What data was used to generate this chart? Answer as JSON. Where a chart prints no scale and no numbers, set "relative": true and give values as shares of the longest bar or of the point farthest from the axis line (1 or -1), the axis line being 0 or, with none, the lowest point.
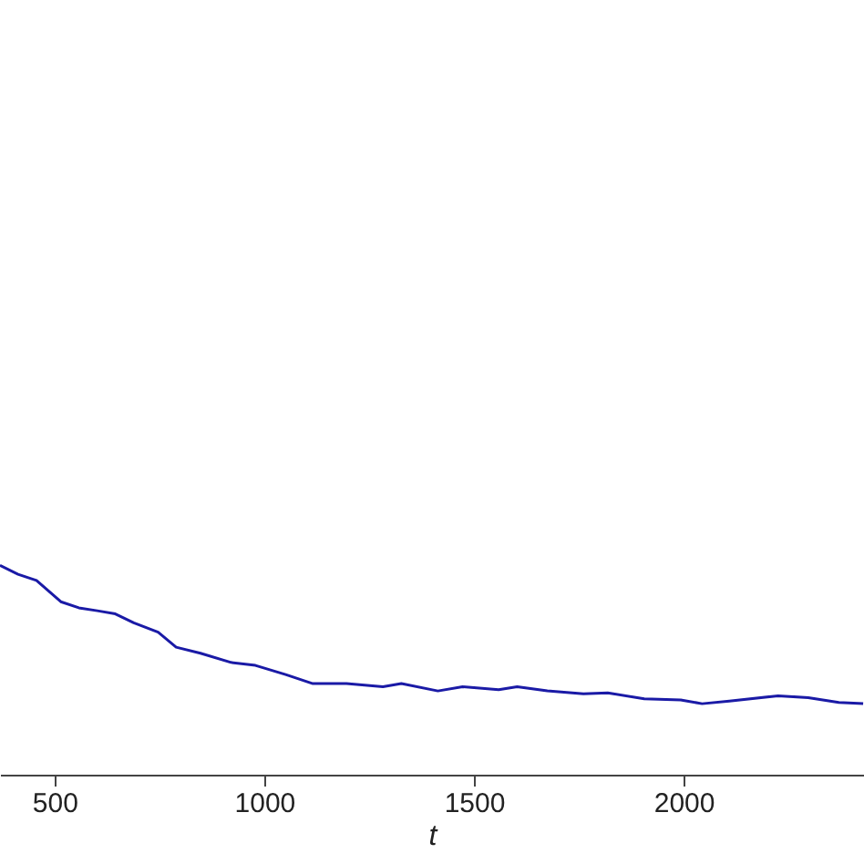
{
  "chart_data": {
    "type": "line",
    "xlabel": "t",
    "relative": true,
    "x": [
      370,
      413,
      457,
      515,
      558,
      602,
      645,
      689,
      747,
      790,
      848,
      921,
      979,
      1051,
      1116,
      1196,
      1283,
      1327,
      1414,
      1473,
      1559,
      1603,
      1675,
      1761,
      1819,
      1906,
      1993,
      2044,
      2109,
      2225,
      2297,
      2370,
      2428
    ],
    "series": [
      {
        "color": "#1a1aa6",
        "values": [
          1.0,
          0.957,
          0.928,
          0.826,
          0.797,
          0.783,
          0.768,
          0.725,
          0.681,
          0.609,
          0.58,
          0.536,
          0.522,
          0.478,
          0.435,
          0.435,
          0.42,
          0.435,
          0.4,
          0.42,
          0.406,
          0.42,
          0.4,
          0.386,
          0.391,
          0.362,
          0.357,
          0.339,
          0.351,
          0.377,
          0.368,
          0.345,
          0.339
        ]
      }
    ],
    "xlim": [
      370,
      2430
    ],
    "xticks": [
      500,
      1000,
      1500,
      2000
    ],
    "grid": false,
    "marker": "none",
    "line_style": "solid"
  }
}
